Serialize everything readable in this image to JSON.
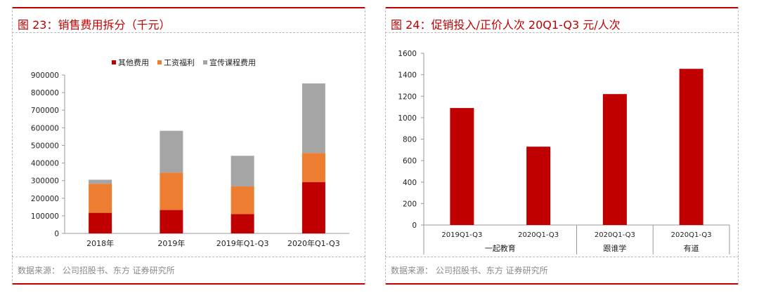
{
  "panel_left": {
    "title": "图 23：销售费用拆分（千元）",
    "source": "数据来源：  公司招股书、东方 证券研究所"
  },
  "panel_right": {
    "title": "图 24：促销投入/正价人次 20Q1-Q3  元/人次",
    "source": "数据来源：  公司招股书、东方 证券研究所"
  },
  "colors": {
    "accent": "#c00000",
    "orange": "#ed7d31",
    "gray": "#a5a5a5"
  },
  "chart_data": [
    {
      "type": "bar",
      "stacked": true,
      "title": "",
      "xlabel": "",
      "ylabel": "",
      "categories": [
        "2018年",
        "2019年",
        "2019年Q1-Q3",
        "2020年Q1-Q3"
      ],
      "series": [
        {
          "name": "其他费用",
          "color": "#c00000",
          "values": [
            117000,
            133000,
            110000,
            292000
          ]
        },
        {
          "name": "工资福利",
          "color": "#ed7d31",
          "values": [
            165000,
            212000,
            157000,
            165000
          ]
        },
        {
          "name": "宣传课程费用",
          "color": "#a5a5a5",
          "values": [
            23000,
            238000,
            174000,
            395000
          ]
        }
      ],
      "yticks": [
        "0",
        "100000",
        "200000",
        "300000",
        "400000",
        "500000",
        "600000",
        "700000",
        "800000",
        "900000"
      ],
      "ylim": [
        0,
        900000
      ],
      "legend": "top"
    },
    {
      "type": "bar",
      "title": "",
      "xlabel": "",
      "ylabel": "",
      "categories": [
        "2019Q1-Q3",
        "2020Q1-Q3",
        "2020Q1-Q3",
        "2020Q1-Q3"
      ],
      "groups": [
        "一起教育",
        "跟谁学",
        "有道"
      ],
      "series": [
        {
          "color": "#c00000",
          "values": [
            1090,
            730,
            1220,
            1455
          ]
        }
      ],
      "yticks": [
        "0",
        "200",
        "400",
        "600",
        "800",
        "1000",
        "1200",
        "1400",
        "1600"
      ],
      "ylim": [
        0,
        1600
      ]
    }
  ]
}
